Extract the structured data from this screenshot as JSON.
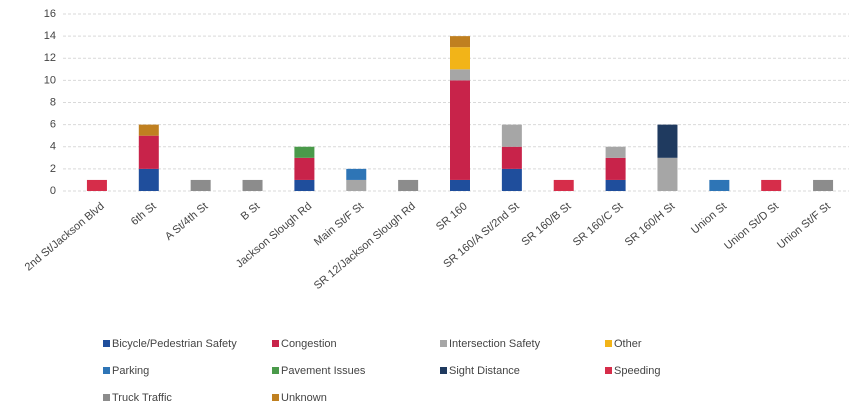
{
  "chart_data": {
    "type": "stacked_bar",
    "categories": [
      "2nd St/Jackson Blvd",
      "6th St",
      "A St/4th St",
      "B St",
      "Jackson Slough Rd",
      "Main St/F St",
      "SR 12/Jackson Slough Rd",
      "SR 160",
      "SR 160/A St/2nd St",
      "SR 160/B St",
      "SR 160/C St",
      "SR 160/H St",
      "Union St",
      "Union St/D St",
      "Union St/F St"
    ],
    "series": [
      {
        "name": "Bicycle/Pedestrian Safety",
        "color": "#1f4e9c",
        "values": [
          0,
          2,
          0,
          0,
          1,
          0,
          0,
          1,
          2,
          0,
          1,
          0,
          0,
          0,
          0
        ]
      },
      {
        "name": "Congestion",
        "color": "#c8234a",
        "values": [
          0,
          3,
          0,
          0,
          2,
          0,
          0,
          9,
          2,
          0,
          2,
          0,
          0,
          0,
          0
        ]
      },
      {
        "name": "Intersection Safety",
        "color": "#a6a6a6",
        "values": [
          0,
          0,
          0,
          0,
          0,
          1,
          0,
          1,
          2,
          0,
          1,
          3,
          0,
          0,
          0
        ]
      },
      {
        "name": "Other",
        "color": "#f2b418",
        "values": [
          0,
          0,
          0,
          0,
          0,
          0,
          0,
          2,
          0,
          0,
          0,
          0,
          0,
          0,
          0
        ]
      },
      {
        "name": "Parking",
        "color": "#2e75b6",
        "values": [
          0,
          0,
          0,
          0,
          0,
          1,
          0,
          0,
          0,
          0,
          0,
          0,
          1,
          0,
          0
        ]
      },
      {
        "name": "Pavement Issues",
        "color": "#4a9a4a",
        "values": [
          0,
          0,
          0,
          0,
          1,
          0,
          0,
          0,
          0,
          0,
          0,
          0,
          0,
          0,
          0
        ]
      },
      {
        "name": "Sight Distance",
        "color": "#1f3a5f",
        "values": [
          0,
          0,
          0,
          0,
          0,
          0,
          0,
          0,
          0,
          0,
          0,
          3,
          0,
          0,
          0
        ]
      },
      {
        "name": "Speeding",
        "color": "#d62d4a",
        "values": [
          1,
          0,
          0,
          0,
          0,
          0,
          0,
          0,
          0,
          1,
          0,
          0,
          0,
          1,
          0
        ]
      },
      {
        "name": "Truck Traffic",
        "color": "#8c8c8c",
        "values": [
          0,
          0,
          1,
          1,
          0,
          0,
          1,
          0,
          0,
          0,
          0,
          0,
          0,
          0,
          1
        ]
      },
      {
        "name": "Unknown",
        "color": "#c08020",
        "values": [
          0,
          1,
          0,
          0,
          0,
          0,
          0,
          1,
          0,
          0,
          0,
          0,
          0,
          0,
          0
        ]
      }
    ],
    "ylim": [
      0,
      16
    ],
    "yticks": [
      0,
      2,
      4,
      6,
      8,
      10,
      12,
      14,
      16
    ],
    "grid": true
  }
}
